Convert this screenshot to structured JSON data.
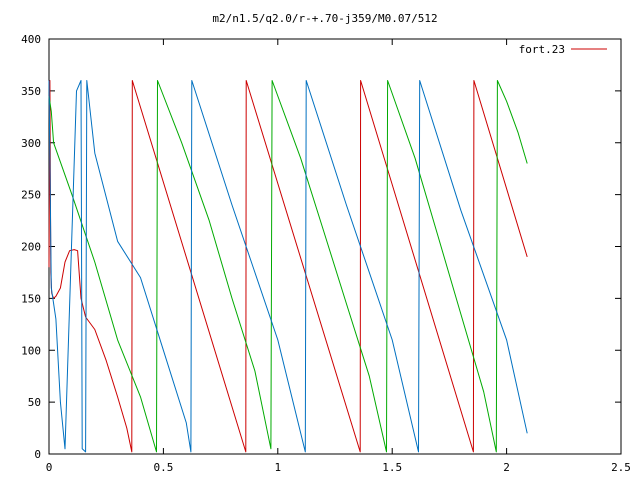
{
  "chart_data": {
    "type": "line",
    "title": "m2/n1.5/q2.0/r-+.70-j359/M0.07/512",
    "xlabel": "",
    "ylabel": "",
    "xlim": [
      0,
      2.5
    ],
    "ylim": [
      0,
      400
    ],
    "xticks": [
      0,
      0.5,
      1,
      1.5,
      2,
      2.5
    ],
    "xtick_labels": [
      "0",
      "0.5",
      "1",
      "1.5",
      "2",
      "2.5"
    ],
    "yticks": [
      0,
      50,
      100,
      150,
      200,
      250,
      300,
      350,
      400
    ],
    "ytick_labels": [
      "0",
      "50",
      "100",
      "150",
      "200",
      "250",
      "300",
      "350",
      "400"
    ],
    "grid": false,
    "legend": {
      "position": "top-right",
      "entries": [
        "fort.23"
      ]
    },
    "series": [
      {
        "name": "fort.23",
        "color": "#cc0000",
        "points": [
          [
            0.0,
            180
          ],
          [
            0.004,
            360
          ],
          [
            0.008,
            175
          ],
          [
            0.012,
            155
          ],
          [
            0.02,
            150
          ],
          [
            0.03,
            152
          ],
          [
            0.05,
            160
          ],
          [
            0.07,
            185
          ],
          [
            0.09,
            196
          ],
          [
            0.11,
            197
          ],
          [
            0.125,
            196
          ],
          [
            0.14,
            150
          ],
          [
            0.16,
            132
          ],
          [
            0.2,
            120
          ],
          [
            0.25,
            90
          ],
          [
            0.3,
            55
          ],
          [
            0.34,
            25
          ],
          [
            0.362,
            2
          ],
          [
            0.364,
            360
          ],
          [
            0.86,
            2
          ],
          [
            0.862,
            360
          ],
          [
            1.36,
            2
          ],
          [
            1.362,
            360
          ],
          [
            1.855,
            2
          ],
          [
            1.857,
            360
          ],
          [
            2.09,
            190
          ]
        ]
      },
      {
        "name": "",
        "color": "#00aa00",
        "points": [
          [
            0.0,
            345
          ],
          [
            0.01,
            330
          ],
          [
            0.02,
            300
          ],
          [
            0.1,
            250
          ],
          [
            0.2,
            185
          ],
          [
            0.3,
            110
          ],
          [
            0.4,
            55
          ],
          [
            0.47,
            2
          ],
          [
            0.474,
            360
          ],
          [
            0.58,
            300
          ],
          [
            0.7,
            225
          ],
          [
            0.8,
            150
          ],
          [
            0.9,
            80
          ],
          [
            0.97,
            5
          ],
          [
            0.975,
            360
          ],
          [
            1.1,
            285
          ],
          [
            1.2,
            215
          ],
          [
            1.3,
            145
          ],
          [
            1.4,
            75
          ],
          [
            1.475,
            2
          ],
          [
            1.48,
            360
          ],
          [
            1.6,
            285
          ],
          [
            1.7,
            210
          ],
          [
            1.8,
            135
          ],
          [
            1.9,
            60
          ],
          [
            1.955,
            2
          ],
          [
            1.96,
            360
          ],
          [
            2.0,
            340
          ],
          [
            2.05,
            310
          ],
          [
            2.09,
            280
          ]
        ]
      },
      {
        "name": "",
        "color": "#0070c0",
        "points": [
          [
            0.0,
            360
          ],
          [
            0.01,
            160
          ],
          [
            0.03,
            130
          ],
          [
            0.05,
            50
          ],
          [
            0.07,
            5
          ],
          [
            0.12,
            350
          ],
          [
            0.14,
            360
          ],
          [
            0.145,
            5
          ],
          [
            0.16,
            2
          ],
          [
            0.165,
            360
          ],
          [
            0.2,
            290
          ],
          [
            0.3,
            205
          ],
          [
            0.4,
            170
          ],
          [
            0.5,
            100
          ],
          [
            0.6,
            30
          ],
          [
            0.62,
            2
          ],
          [
            0.624,
            360
          ],
          [
            0.8,
            240
          ],
          [
            1.0,
            110
          ],
          [
            1.12,
            2
          ],
          [
            1.124,
            360
          ],
          [
            1.3,
            240
          ],
          [
            1.5,
            110
          ],
          [
            1.615,
            2
          ],
          [
            1.62,
            360
          ],
          [
            1.8,
            235
          ],
          [
            2.0,
            110
          ],
          [
            2.09,
            20
          ]
        ]
      }
    ]
  }
}
